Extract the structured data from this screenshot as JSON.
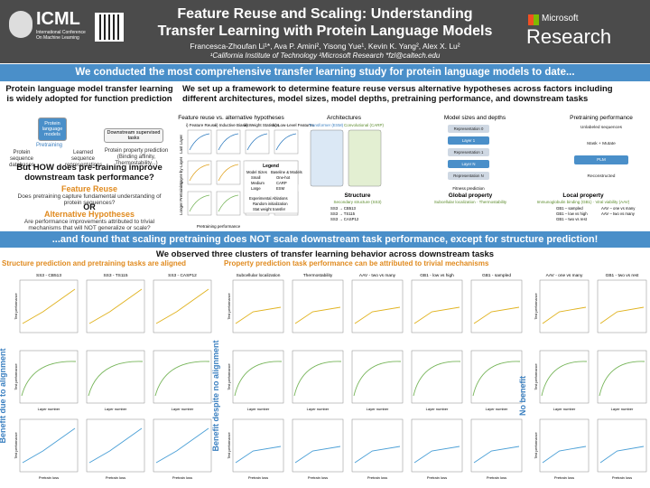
{
  "header": {
    "conference": "ICML",
    "conference_sub": "International Conference On Machine Learning",
    "title_line1": "Feature Reuse and Scaling: Understanding",
    "title_line2": "Transfer Learning with Protein Language Models",
    "authors": "Francesca-Zhoufan Li¹*, Ava P. Amini², Yisong Yue¹, Kevin K. Yang², Alex X. Lu²",
    "affiliations": "¹California Institute of Technology ²Microsoft Research *fzl@caltech.edu",
    "sponsor": "Microsoft",
    "sponsor2": "Research"
  },
  "banner_top": "We conducted the most comprehensive transfer learning study for protein language models to date...",
  "left": {
    "heading": "Protein language model transfer learning is widely adopted for function prediction",
    "plm_box": "Protein language models",
    "pretraining": "Pretraining",
    "databases": "Protein sequence databases",
    "learned": "Learned sequence representations",
    "downstream": "Downstream supervised tasks",
    "prediction": "Protein property prediction (Binding affinity, Thermostability...)",
    "question": "But HOW does pre-training improve downstream task performance?",
    "feature_reuse": "Feature Reuse",
    "feature_reuse_text": "Does pretraining capture fundamental understanding of protein sequences?",
    "or": "OR",
    "alternative": "Alternative Hypotheses",
    "alternative_text": "Are performance improvements attributed to trivial mechanisms that will NOT generalize or scale?"
  },
  "middle": {
    "heading": "We set up a framework to determine feature reuse versus alternative hypotheses across factors including different architectures, model sizes, model depths, pretraining performance, and downstream tasks",
    "hyp_title": "Feature reuse vs. alternative hypotheses",
    "hyp_columns": [
      "i) Feature Reuse",
      "ii) Inductive Biases",
      "iii) Weight Statistics",
      "iv) Low-Level Features"
    ],
    "hyp_rows": [
      "Last Layer",
      "Layer-by-Layer",
      "Longer Pretraining"
    ],
    "hyp_xlabel": "Pretraining performance",
    "legend_title": "Legend",
    "legend_sizes_title": "Model Sizes",
    "legend_sizes": [
      "Small",
      "Medium",
      "Large"
    ],
    "legend_models_title": "Baseline & Models",
    "legend_models": [
      "One-hot",
      "CARP",
      "ESM"
    ],
    "legend_ablation_title": "Experimental Ablations",
    "legend_ablations": [
      "Random initialization",
      "Stat weight transfer"
    ],
    "arch_title": "Architectures",
    "arch": [
      "Transformer (ESM)",
      "Convolutional (CARP)"
    ],
    "sizes_title": "Model sizes and depths",
    "sizes_layers": [
      "Representation 0",
      "Layer 1",
      "Representation 1",
      "Layer N",
      "Representation N"
    ],
    "sizes_note": "Fitness prediction",
    "pretrain_title": "Pretraining performance",
    "pretrain_steps": [
      "Unlabeled sequences",
      "Mask + Mutate",
      "PLM",
      "Reconstructed"
    ],
    "tasks": [
      {
        "title": "Structure",
        "sub": "Secondary structure (SS3)",
        "items": [
          "SS3 → CB513",
          "SS3 → TS115",
          "SS3 → CASP12"
        ]
      },
      {
        "title": "Global property",
        "sub": "Subcellular localization · Thermostability",
        "items": []
      },
      {
        "title": "Local property",
        "sub": "Immunoglobulin binding (GB1) · Viral viability (AAV)",
        "items": [
          "GB1 – sampled",
          "GB1 – low vs high",
          "GB1 – two vs rest",
          "AAV – one vs many",
          "AAV – two vs many"
        ]
      }
    ]
  },
  "banner_bottom": "...and found that scaling pretraining does NOT scale downstream task performance, except for structure prediction!",
  "subheading": "We observed three clusters of transfer learning behavior across downstream tasks",
  "axis_labels": {
    "y": "Test performance",
    "layer": "Layer number",
    "loss": "Pretrain loss"
  },
  "clusters": [
    {
      "title": "Structure prediction and pretraining tasks are aligned",
      "side": "Benefit due to alignment",
      "panels": [
        "SS3 - CB513",
        "SS3 - TS115",
        "SS3 - CASP12"
      ]
    },
    {
      "title": "Property prediction task performance can be attributed to trivial mechanisms",
      "side": "Benefit despite no alignment",
      "panels": [
        "Subcellular localization",
        "Thermostability",
        "AAV - two vs many",
        "GB1 - low vs high",
        "GB1 - sampled"
      ]
    },
    {
      "title": "",
      "side": "No benefit",
      "panels": [
        "AAV - one vs many",
        "GB1 - two vs rest"
      ]
    }
  ]
}
